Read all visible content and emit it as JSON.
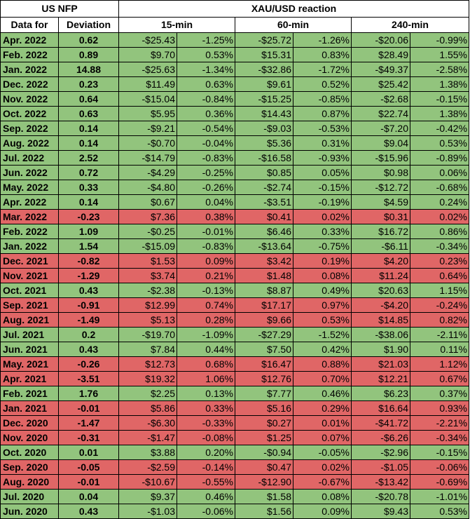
{
  "header": {
    "us_nfp": "US NFP",
    "xau_reaction": "XAU/USD reaction",
    "data_for": "Data for",
    "deviation": "Deviation",
    "min15": "15-min",
    "min60": "60-min",
    "min240": "240-min"
  },
  "colors": {
    "positive": "#92c47d",
    "negative": "#e06666"
  },
  "rows": [
    {
      "date": "Apr. 2022",
      "dev": "0.62",
      "m15": "-$25.43",
      "p15": "-1.25%",
      "m60": "-$25.72",
      "p60": "-1.26%",
      "m240": "-$20.06",
      "p240": "-0.99%",
      "color": "green"
    },
    {
      "date": "Feb. 2022",
      "dev": "0.89",
      "m15": "$9.70",
      "p15": "0.53%",
      "m60": "$15.31",
      "p60": "0.83%",
      "m240": "$28.49",
      "p240": "1.55%",
      "color": "green"
    },
    {
      "date": "Jan. 2022",
      "dev": "14.88",
      "m15": "-$25.63",
      "p15": "-1.34%",
      "m60": "-$32.86",
      "p60": "-1.72%",
      "m240": "-$49.37",
      "p240": "-2.58%",
      "color": "green"
    },
    {
      "date": "Dec. 2022",
      "dev": "0.23",
      "m15": "$11.49",
      "p15": "0.63%",
      "m60": "$9.61",
      "p60": "0.52%",
      "m240": "$25.42",
      "p240": "1.38%",
      "color": "green"
    },
    {
      "date": "Nov. 2022",
      "dev": "0.64",
      "m15": "-$15.04",
      "p15": "-0.84%",
      "m60": "-$15.25",
      "p60": "-0.85%",
      "m240": "-$2.68",
      "p240": "-0.15%",
      "color": "green"
    },
    {
      "date": "Oct. 2022",
      "dev": "0.63",
      "m15": "$5.95",
      "p15": "0.36%",
      "m60": "$14.43",
      "p60": "0.87%",
      "m240": "$22.74",
      "p240": "1.38%",
      "color": "green"
    },
    {
      "date": "Sep. 2022",
      "dev": "0.14",
      "m15": "-$9.21",
      "p15": "-0.54%",
      "m60": "-$9.03",
      "p60": "-0.53%",
      "m240": "-$7.20",
      "p240": "-0.42%",
      "color": "green"
    },
    {
      "date": "Aug. 2022",
      "dev": "0.14",
      "m15": "-$0.70",
      "p15": "-0.04%",
      "m60": "$5.36",
      "p60": "0.31%",
      "m240": "$9.04",
      "p240": "0.53%",
      "color": "green"
    },
    {
      "date": "Jul. 2022",
      "dev": "2.52",
      "m15": "-$14.79",
      "p15": "-0.83%",
      "m60": "-$16.58",
      "p60": "-0.93%",
      "m240": "-$15.96",
      "p240": "-0.89%",
      "color": "green"
    },
    {
      "date": "Jun. 2022",
      "dev": "0.72",
      "m15": "-$4.29",
      "p15": "-0.25%",
      "m60": "$0.85",
      "p60": "0.05%",
      "m240": "$0.98",
      "p240": "0.06%",
      "color": "green"
    },
    {
      "date": "May. 2022",
      "dev": "0.33",
      "m15": "-$4.80",
      "p15": "-0.26%",
      "m60": "-$2.74",
      "p60": "-0.15%",
      "m240": "-$12.72",
      "p240": "-0.68%",
      "color": "green"
    },
    {
      "date": "Apr. 2022",
      "dev": "0.14",
      "m15": "$0.67",
      "p15": "0.04%",
      "m60": "-$3.51",
      "p60": "-0.19%",
      "m240": "$4.59",
      "p240": "0.24%",
      "color": "green"
    },
    {
      "date": "Mar. 2022",
      "dev": "-0.23",
      "m15": "$7.36",
      "p15": "0.38%",
      "m60": "$0.41",
      "p60": "0.02%",
      "m240": "$0.31",
      "p240": "0.02%",
      "color": "red"
    },
    {
      "date": "Feb. 2022",
      "dev": "1.09",
      "m15": "-$0.25",
      "p15": "-0.01%",
      "m60": "$6.46",
      "p60": "0.33%",
      "m240": "$16.72",
      "p240": "0.86%",
      "color": "green"
    },
    {
      "date": "Jan. 2022",
      "dev": "1.54",
      "m15": "-$15.09",
      "p15": "-0.83%",
      "m60": "-$13.64",
      "p60": "-0.75%",
      "m240": "-$6.11",
      "p240": "-0.34%",
      "color": "green"
    },
    {
      "date": "Dec. 2021",
      "dev": "-0.82",
      "m15": "$1.53",
      "p15": "0.09%",
      "m60": "$3.42",
      "p60": "0.19%",
      "m240": "$4.20",
      "p240": "0.23%",
      "color": "red"
    },
    {
      "date": "Nov. 2021",
      "dev": "-1.29",
      "m15": "$3.74",
      "p15": "0.21%",
      "m60": "$1.48",
      "p60": "0.08%",
      "m240": "$11.24",
      "p240": "0.64%",
      "color": "red"
    },
    {
      "date": "Oct. 2021",
      "dev": "0.43",
      "m15": "-$2.38",
      "p15": "-0.13%",
      "m60": "$8.87",
      "p60": "0.49%",
      "m240": "$20.63",
      "p240": "1.15%",
      "color": "green"
    },
    {
      "date": "Sep. 2021",
      "dev": "-0.91",
      "m15": "$12.99",
      "p15": "0.74%",
      "m60": "$17.17",
      "p60": "0.97%",
      "m240": "-$4.20",
      "p240": "-0.24%",
      "color": "red"
    },
    {
      "date": "Aug. 2021",
      "dev": "-1.49",
      "m15": "$5.13",
      "p15": "0.28%",
      "m60": "$9.66",
      "p60": "0.53%",
      "m240": "$14.85",
      "p240": "0.82%",
      "color": "red"
    },
    {
      "date": "Jul. 2021",
      "dev": "0.2",
      "m15": "-$19.70",
      "p15": "-1.09%",
      "m60": "-$27.29",
      "p60": "-1.52%",
      "m240": "-$38.06",
      "p240": "-2.11%",
      "color": "green"
    },
    {
      "date": "Jun. 2021",
      "dev": "0.43",
      "m15": "$7.84",
      "p15": "0.44%",
      "m60": "$7.50",
      "p60": "0.42%",
      "m240": "$1.90",
      "p240": "0.11%",
      "color": "green"
    },
    {
      "date": "May. 2021",
      "dev": "-0.26",
      "m15": "$12.73",
      "p15": "0.68%",
      "m60": "$16.47",
      "p60": "0.88%",
      "m240": "$21.03",
      "p240": "1.12%",
      "color": "red"
    },
    {
      "date": "Apr. 2021",
      "dev": "-3.51",
      "m15": "$19.32",
      "p15": "1.06%",
      "m60": "$12.76",
      "p60": "0.70%",
      "m240": "$12.21",
      "p240": "0.67%",
      "color": "red"
    },
    {
      "date": "Feb. 2021",
      "dev": "1.76",
      "m15": "$2.25",
      "p15": "0.13%",
      "m60": "$7.77",
      "p60": "0.46%",
      "m240": "$6.23",
      "p240": "0.37%",
      "color": "green"
    },
    {
      "date": "Jan. 2021",
      "dev": "-0.01",
      "m15": "$5.86",
      "p15": "0.33%",
      "m60": "$5.16",
      "p60": "0.29%",
      "m240": "$16.64",
      "p240": "0.93%",
      "color": "red"
    },
    {
      "date": "Dec. 2020",
      "dev": "-1.47",
      "m15": "-$6.30",
      "p15": "-0.33%",
      "m60": "$0.27",
      "p60": "0.01%",
      "m240": "-$41.72",
      "p240": "-2.21%",
      "color": "red"
    },
    {
      "date": "Nov. 2020",
      "dev": "-0.31",
      "m15": "-$1.47",
      "p15": "-0.08%",
      "m60": "$1.25",
      "p60": "0.07%",
      "m240": "-$6.26",
      "p240": "-0.34%",
      "color": "red"
    },
    {
      "date": "Oct. 2020",
      "dev": "0.01",
      "m15": "$3.88",
      "p15": "0.20%",
      "m60": "-$0.94",
      "p60": "-0.05%",
      "m240": "-$2.96",
      "p240": "-0.15%",
      "color": "green"
    },
    {
      "date": "Sep. 2020",
      "dev": "-0.05",
      "m15": "-$2.59",
      "p15": "-0.14%",
      "m60": "$0.47",
      "p60": "0.02%",
      "m240": "-$1.05",
      "p240": "-0.06%",
      "color": "red"
    },
    {
      "date": "Aug. 2020",
      "dev": "-0.01",
      "m15": "-$10.67",
      "p15": "-0.55%",
      "m60": "-$12.90",
      "p60": "-0.67%",
      "m240": "-$13.42",
      "p240": "-0.69%",
      "color": "red"
    },
    {
      "date": "Jul. 2020",
      "dev": "0.04",
      "m15": "$9.37",
      "p15": "0.46%",
      "m60": "$1.58",
      "p60": "0.08%",
      "m240": "-$20.78",
      "p240": "-1.01%",
      "color": "green"
    },
    {
      "date": "Jun. 2020",
      "dev": "0.43",
      "m15": "-$1.03",
      "p15": "-0.06%",
      "m60": "$1.56",
      "p60": "0.09%",
      "m240": "$9.43",
      "p240": "0.53%",
      "color": "green"
    }
  ]
}
